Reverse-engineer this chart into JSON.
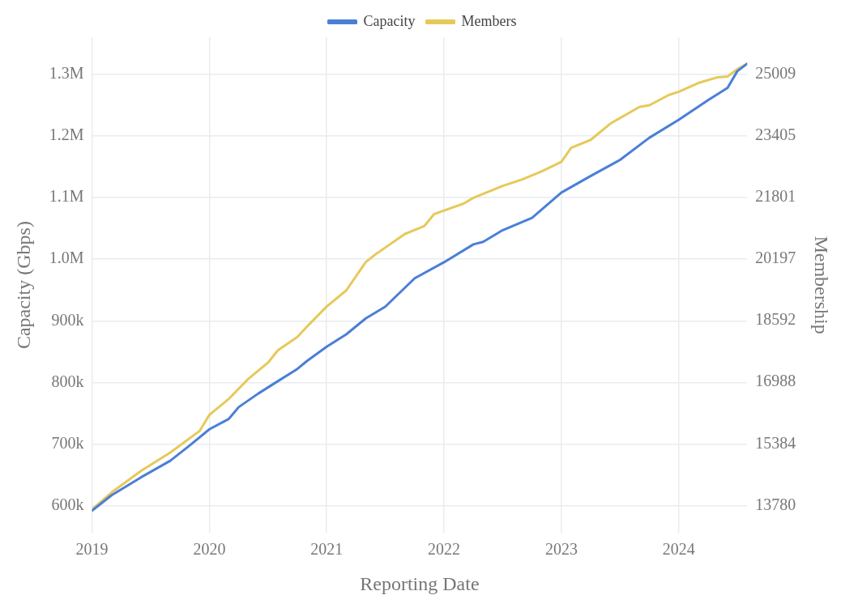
{
  "chart_data": {
    "type": "line",
    "xlabel": "Reporting Date",
    "ylabel": "Capacity (Gbps)",
    "y2label": "Membership",
    "xlim": [
      "2019-01",
      "2024-08"
    ],
    "xticks": [
      "2019",
      "2020",
      "2021",
      "2022",
      "2023",
      "2024"
    ],
    "ylim": [
      556000,
      1360000
    ],
    "yticks": [
      {
        "value": 600000,
        "label": "600k"
      },
      {
        "value": 700000,
        "label": "700k"
      },
      {
        "value": 800000,
        "label": "800k"
      },
      {
        "value": 900000,
        "label": "900k"
      },
      {
        "value": 1000000,
        "label": "1.0M"
      },
      {
        "value": 1100000,
        "label": "1.1M"
      },
      {
        "value": 1200000,
        "label": "1.2M"
      },
      {
        "value": 1300000,
        "label": "1.3M"
      }
    ],
    "y2lim": [
      13069,
      25971
    ],
    "y2ticks": [
      13780,
      15384,
      16988,
      18592,
      20197,
      21801,
      23405,
      25009
    ],
    "grid": true,
    "legend": "top",
    "marker": "none",
    "line_style": "solid",
    "series": [
      {
        "name": "Capacity",
        "color": "#4a7fd8",
        "x": [
          "2019-01",
          "2019-03",
          "2019-06",
          "2019-09",
          "2019-11",
          "2020-01",
          "2020-03",
          "2020-04",
          "2020-06",
          "2020-08",
          "2020-10",
          "2020-11",
          "2021-01",
          "2021-03",
          "2021-05",
          "2021-07",
          "2021-10",
          "2022-01",
          "2022-04",
          "2022-05",
          "2022-07",
          "2022-10",
          "2023-01",
          "2023-04",
          "2023-07",
          "2023-10",
          "2024-01",
          "2024-04",
          "2024-06",
          "2024-07",
          "2024-08"
        ],
        "values": [
          592000,
          617000,
          646000,
          673000,
          698000,
          724000,
          741000,
          760000,
          782000,
          802000,
          822000,
          835000,
          858000,
          878000,
          904000,
          923000,
          969000,
          995000,
          1024000,
          1028000,
          1047000,
          1067000,
          1108000,
          1135000,
          1161000,
          1197000,
          1226000,
          1258000,
          1278000,
          1305000,
          1317000
        ]
      },
      {
        "name": "Members",
        "color": "#e6c95a",
        "axis": "y2",
        "x": [
          "2019-01",
          "2019-03",
          "2019-06",
          "2019-09",
          "2019-12",
          "2020-01",
          "2020-03",
          "2020-05",
          "2020-07",
          "2020-08",
          "2020-10",
          "2020-11",
          "2021-01",
          "2021-03",
          "2021-05",
          "2021-06",
          "2021-09",
          "2021-11",
          "2021-12",
          "2022-03",
          "2022-04",
          "2022-07",
          "2022-09",
          "2022-11",
          "2023-01",
          "2023-02",
          "2023-04",
          "2023-06",
          "2023-09",
          "2023-10",
          "2023-12",
          "2024-01",
          "2024-03",
          "2024-05",
          "2024-06",
          "2024-07",
          "2024-08"
        ],
        "values": [
          13680,
          14120,
          14680,
          15160,
          15720,
          16140,
          16560,
          17080,
          17500,
          17820,
          18170,
          18440,
          18960,
          19380,
          20120,
          20320,
          20850,
          21060,
          21370,
          21640,
          21790,
          22100,
          22270,
          22480,
          22730,
          23090,
          23300,
          23720,
          24160,
          24200,
          24470,
          24550,
          24780,
          24930,
          24950,
          25140,
          25280
        ]
      }
    ]
  }
}
